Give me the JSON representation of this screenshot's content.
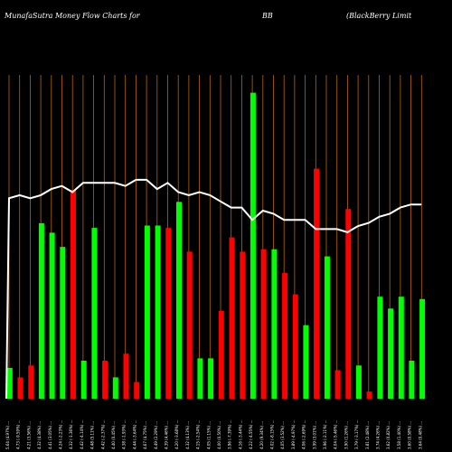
{
  "header": {
    "left": "MunafaSutra  Money Flow  Charts for",
    "center": "BB",
    "right": "(BlackBerry Limit"
  },
  "colors": {
    "background": "#000000",
    "up": "#00ff00",
    "down": "#ff0000",
    "grid": "#b8650f",
    "line": "#ffffff"
  },
  "chart_data": {
    "type": "bar",
    "grid": true,
    "overlay_line": true,
    "categories": [
      "5.64 (4.97%) ...",
      "4.73 (-9.59%) ...",
      "4.21 (3.56%) ...",
      "4.32 (4.38%) ...",
      "4.41 (3.05%) ...",
      "4.24 (-2.23%) ...",
      "4.32 (-1.36%) ...",
      "4.42 (-4.14%) ...",
      "4.48 (5.11%) ...",
      "4.42 (-2.37%) ...",
      "4.40 (0.45%) ...",
      "4.38 (-1.93%) ...",
      "4.44 (-3.64%) ...",
      "4.67 (4.75%) ...",
      "4.49 (2.29%) ...",
      "4.39 (4.46%) ...",
      "4.20 (-3.68%) ...",
      "4.32 (4.13%) ...",
      "4.15 (-2.54%) ...",
      "4.05 (1.15%) ...",
      "4.00 (0.50%) ...",
      "3.96 (-7.39%) ...",
      "4.16 (-3.44%) ...",
      "4.22 (-4.55%) ...",
      "4.20 (9.34%) ...",
      "4.02 (-8.15%) ...",
      "4.05 (3.52%) ...",
      "3.89 (-4.97%) ...",
      "4.06 (-2.69%) ...",
      "3.99 (3.01%) ...",
      "3.96 (-2.11%) ...",
      "4.04 (-5.46%) ...",
      "3.90 (1.26%) ...",
      "3.79 (-3.17%) ...",
      "3.81 (2.48%) ...",
      "3.74 (4.26%) ...",
      "3.62 (0.82%) ...",
      "3.58 (1.40%) ...",
      "3.60 (0.58%) ...",
      "3.64 (0.48%) ..."
    ],
    "values": [
      13,
      9,
      14,
      74,
      70,
      64,
      88,
      16,
      72,
      16,
      9,
      19,
      7,
      73,
      73,
      72,
      83,
      62,
      17,
      17,
      37,
      68,
      62,
      129,
      63,
      63,
      53,
      44,
      31,
      97,
      60,
      12,
      80,
      14,
      3,
      43,
      38,
      43,
      16,
      42
    ],
    "directions": [
      "up",
      "down",
      "down",
      "up",
      "up",
      "up",
      "down",
      "up",
      "up",
      "down",
      "up",
      "down",
      "down",
      "up",
      "up",
      "down",
      "up",
      "down",
      "up",
      "up",
      "down",
      "down",
      "down",
      "up",
      "down",
      "up",
      "down",
      "down",
      "up",
      "down",
      "up",
      "down",
      "down",
      "up",
      "down",
      "up",
      "up",
      "up",
      "up",
      "up"
    ],
    "line_values": [
      65,
      66,
      65,
      66,
      68,
      69,
      67,
      70,
      70,
      70,
      70,
      69,
      71,
      71,
      68,
      70,
      67,
      66,
      67,
      66,
      64,
      62,
      62,
      58,
      61,
      60,
      58,
      58,
      58,
      55,
      55,
      55,
      54,
      56,
      57,
      59,
      60,
      62,
      63,
      63
    ],
    "ylim": [
      0,
      130
    ],
    "line_ylim": [
      0,
      100
    ]
  }
}
